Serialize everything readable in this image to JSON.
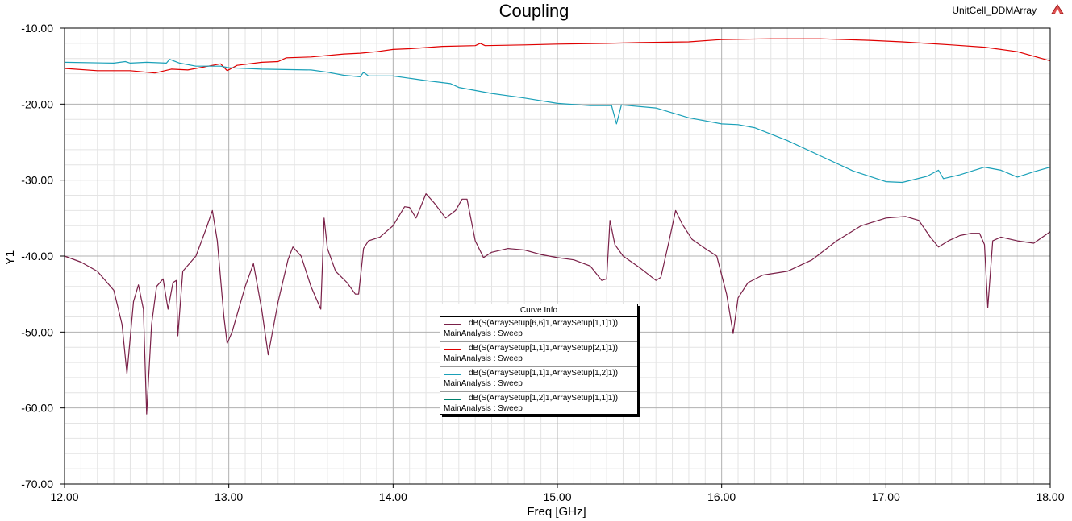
{
  "design_name": "UnitCell_DDMArray",
  "chart_data": {
    "type": "line",
    "title": "Coupling",
    "xlabel": "Freq [GHz]",
    "ylabel": "Y1",
    "xlim": [
      12.0,
      18.0
    ],
    "ylim": [
      -70.0,
      -10.0
    ],
    "x_ticks": [
      "12.00",
      "13.00",
      "14.00",
      "15.00",
      "16.00",
      "17.00",
      "18.00"
    ],
    "y_ticks": [
      "-10.00",
      "-20.00",
      "-30.00",
      "-40.00",
      "-50.00",
      "-60.00",
      "-70.00"
    ],
    "grid": true,
    "legend": {
      "title": "Curve Info",
      "placement": "center"
    },
    "series": [
      {
        "name": "dB(S(ArraySetup[6,6]1,ArraySetup[1,1]1))",
        "subtitle": "MainAnalysis : Sweep",
        "color": "#7a2048",
        "points": [
          [
            12.0,
            -40.0
          ],
          [
            12.1,
            -40.8
          ],
          [
            12.2,
            -42.0
          ],
          [
            12.3,
            -44.5
          ],
          [
            12.35,
            -49.0
          ],
          [
            12.38,
            -55.5
          ],
          [
            12.42,
            -46.0
          ],
          [
            12.45,
            -43.8
          ],
          [
            12.48,
            -47.0
          ],
          [
            12.5,
            -60.8
          ],
          [
            12.53,
            -49.0
          ],
          [
            12.56,
            -44.0
          ],
          [
            12.6,
            -43.0
          ],
          [
            12.63,
            -47.0
          ],
          [
            12.66,
            -43.5
          ],
          [
            12.68,
            -43.2
          ],
          [
            12.69,
            -50.5
          ],
          [
            12.72,
            -42.0
          ],
          [
            12.8,
            -40.0
          ],
          [
            12.86,
            -36.5
          ],
          [
            12.9,
            -34.0
          ],
          [
            12.93,
            -38.0
          ],
          [
            12.97,
            -48.0
          ],
          [
            12.99,
            -51.5
          ],
          [
            13.02,
            -50.0
          ],
          [
            13.1,
            -44.0
          ],
          [
            13.15,
            -41.0
          ],
          [
            13.2,
            -47.0
          ],
          [
            13.24,
            -53.0
          ],
          [
            13.3,
            -46.0
          ],
          [
            13.36,
            -40.5
          ],
          [
            13.39,
            -38.8
          ],
          [
            13.44,
            -40.0
          ],
          [
            13.5,
            -44.0
          ],
          [
            13.55,
            -46.5
          ],
          [
            13.56,
            -47.0
          ],
          [
            13.58,
            -35.0
          ],
          [
            13.6,
            -39.0
          ],
          [
            13.65,
            -42.0
          ],
          [
            13.72,
            -43.5
          ],
          [
            13.77,
            -45.0
          ],
          [
            13.79,
            -45.0
          ],
          [
            13.82,
            -39.0
          ],
          [
            13.85,
            -38.0
          ],
          [
            13.92,
            -37.5
          ],
          [
            14.0,
            -36.0
          ],
          [
            14.07,
            -33.5
          ],
          [
            14.1,
            -33.6
          ],
          [
            14.14,
            -35.0
          ],
          [
            14.2,
            -31.8
          ],
          [
            14.25,
            -33.0
          ],
          [
            14.32,
            -35.0
          ],
          [
            14.38,
            -34.0
          ],
          [
            14.42,
            -32.5
          ],
          [
            14.45,
            -32.5
          ],
          [
            14.5,
            -38.0
          ],
          [
            14.55,
            -40.2
          ],
          [
            14.6,
            -39.5
          ],
          [
            14.7,
            -39.0
          ],
          [
            14.8,
            -39.2
          ],
          [
            14.9,
            -39.8
          ],
          [
            15.0,
            -40.2
          ],
          [
            15.1,
            -40.5
          ],
          [
            15.2,
            -41.3
          ],
          [
            15.27,
            -43.2
          ],
          [
            15.3,
            -43.0
          ],
          [
            15.32,
            -35.3
          ],
          [
            15.35,
            -38.5
          ],
          [
            15.4,
            -40.0
          ],
          [
            15.5,
            -41.5
          ],
          [
            15.6,
            -43.2
          ],
          [
            15.63,
            -42.8
          ],
          [
            15.68,
            -38.0
          ],
          [
            15.72,
            -34.0
          ],
          [
            15.76,
            -35.8
          ],
          [
            15.82,
            -37.8
          ],
          [
            15.9,
            -39.0
          ],
          [
            15.97,
            -40.0
          ],
          [
            16.03,
            -45.0
          ],
          [
            16.07,
            -50.2
          ],
          [
            16.1,
            -45.5
          ],
          [
            16.16,
            -43.5
          ],
          [
            16.25,
            -42.5
          ],
          [
            16.4,
            -42.0
          ],
          [
            16.55,
            -40.5
          ],
          [
            16.7,
            -38.0
          ],
          [
            16.85,
            -36.0
          ],
          [
            17.0,
            -35.0
          ],
          [
            17.12,
            -34.8
          ],
          [
            17.2,
            -35.3
          ],
          [
            17.27,
            -37.5
          ],
          [
            17.32,
            -38.8
          ],
          [
            17.38,
            -38.0
          ],
          [
            17.45,
            -37.3
          ],
          [
            17.52,
            -37.0
          ],
          [
            17.57,
            -37.0
          ],
          [
            17.6,
            -38.5
          ],
          [
            17.62,
            -46.8
          ],
          [
            17.65,
            -38.0
          ],
          [
            17.7,
            -37.5
          ],
          [
            17.8,
            -38.0
          ],
          [
            17.9,
            -38.3
          ],
          [
            18.0,
            -36.8
          ]
        ]
      },
      {
        "name": "dB(S(ArraySetup[1,1]1,ArraySetup[2,1]1))",
        "subtitle": "MainAnalysis : Sweep",
        "color": "#e00000",
        "points": [
          [
            12.0,
            -15.3
          ],
          [
            12.2,
            -15.6
          ],
          [
            12.4,
            -15.6
          ],
          [
            12.55,
            -15.9
          ],
          [
            12.65,
            -15.4
          ],
          [
            12.75,
            -15.5
          ],
          [
            12.85,
            -15.1
          ],
          [
            12.95,
            -14.7
          ],
          [
            12.99,
            -15.6
          ],
          [
            13.05,
            -14.9
          ],
          [
            13.2,
            -14.5
          ],
          [
            13.3,
            -14.4
          ],
          [
            13.35,
            -13.9
          ],
          [
            13.5,
            -13.8
          ],
          [
            13.7,
            -13.4
          ],
          [
            13.8,
            -13.3
          ],
          [
            13.9,
            -13.1
          ],
          [
            14.0,
            -12.8
          ],
          [
            14.1,
            -12.7
          ],
          [
            14.3,
            -12.4
          ],
          [
            14.5,
            -12.3
          ],
          [
            14.53,
            -12.0
          ],
          [
            14.56,
            -12.3
          ],
          [
            14.8,
            -12.2
          ],
          [
            15.0,
            -12.1
          ],
          [
            15.3,
            -12.0
          ],
          [
            15.5,
            -11.9
          ],
          [
            15.8,
            -11.8
          ],
          [
            16.0,
            -11.5
          ],
          [
            16.3,
            -11.4
          ],
          [
            16.6,
            -11.4
          ],
          [
            16.9,
            -11.6
          ],
          [
            17.1,
            -11.8
          ],
          [
            17.4,
            -12.2
          ],
          [
            17.6,
            -12.5
          ],
          [
            17.8,
            -13.1
          ],
          [
            18.0,
            -14.3
          ]
        ]
      },
      {
        "name": "dB(S(ArraySetup[1,1]1,ArraySetup[1,2]1))",
        "subtitle": "MainAnalysis : Sweep",
        "color": "#1aa0b8",
        "points": [
          [
            12.0,
            -14.5
          ],
          [
            12.3,
            -14.6
          ],
          [
            12.37,
            -14.4
          ],
          [
            12.4,
            -14.6
          ],
          [
            12.5,
            -14.5
          ],
          [
            12.62,
            -14.6
          ],
          [
            12.64,
            -14.1
          ],
          [
            12.7,
            -14.6
          ],
          [
            12.8,
            -15.0
          ],
          [
            12.9,
            -15.0
          ],
          [
            12.95,
            -15.0
          ],
          [
            13.0,
            -15.2
          ],
          [
            13.2,
            -15.4
          ],
          [
            13.5,
            -15.5
          ],
          [
            13.6,
            -15.8
          ],
          [
            13.7,
            -16.2
          ],
          [
            13.8,
            -16.4
          ],
          [
            13.82,
            -15.8
          ],
          [
            13.85,
            -16.3
          ],
          [
            14.0,
            -16.3
          ],
          [
            14.2,
            -16.9
          ],
          [
            14.35,
            -17.3
          ],
          [
            14.4,
            -17.8
          ],
          [
            14.6,
            -18.6
          ],
          [
            14.8,
            -19.2
          ],
          [
            15.0,
            -19.9
          ],
          [
            15.2,
            -20.2
          ],
          [
            15.33,
            -20.2
          ],
          [
            15.36,
            -22.6
          ],
          [
            15.39,
            -20.1
          ],
          [
            15.6,
            -20.5
          ],
          [
            15.8,
            -21.8
          ],
          [
            16.0,
            -22.6
          ],
          [
            16.1,
            -22.7
          ],
          [
            16.2,
            -23.1
          ],
          [
            16.4,
            -24.8
          ],
          [
            16.6,
            -26.8
          ],
          [
            16.8,
            -28.8
          ],
          [
            17.0,
            -30.2
          ],
          [
            17.1,
            -30.3
          ],
          [
            17.25,
            -29.5
          ],
          [
            17.32,
            -28.7
          ],
          [
            17.35,
            -29.8
          ],
          [
            17.45,
            -29.3
          ],
          [
            17.6,
            -28.3
          ],
          [
            17.7,
            -28.7
          ],
          [
            17.8,
            -29.6
          ],
          [
            17.9,
            -28.9
          ],
          [
            18.0,
            -28.3
          ]
        ]
      },
      {
        "name": "dB(S(ArraySetup[1,2]1,ArraySetup[1,1]1))",
        "subtitle": "MainAnalysis : Sweep",
        "color": "#00806c",
        "points": []
      }
    ]
  }
}
